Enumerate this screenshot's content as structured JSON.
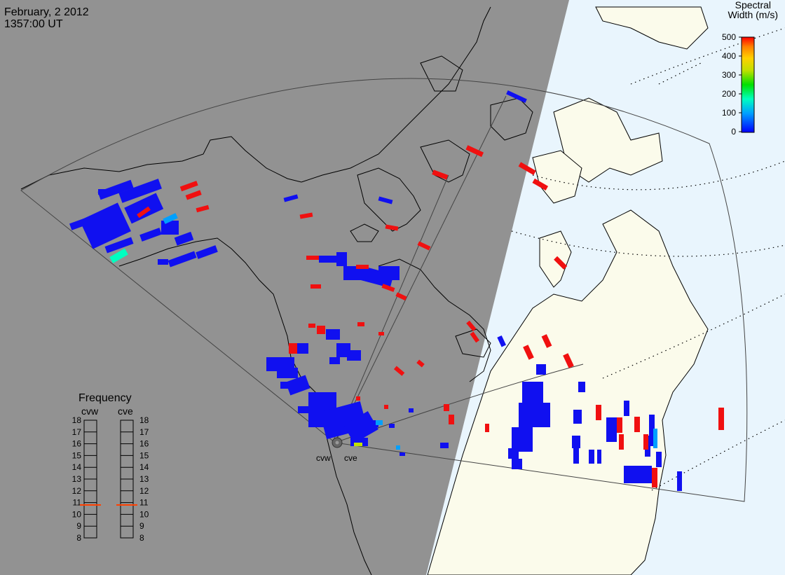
{
  "header": {
    "date": "February, 2 2012",
    "time": "1357:00 UT"
  },
  "colorbar": {
    "title_line1": "Spectral",
    "title_line2": "Width (m/s)",
    "ticks": [
      "500",
      "400",
      "300",
      "200",
      "100",
      "0"
    ],
    "range": [
      0,
      500
    ],
    "colors": [
      "#0000ff",
      "#00a0ff",
      "#00ffc0",
      "#00e000",
      "#c0e000",
      "#ffd000",
      "#ff8000",
      "#ff0000"
    ]
  },
  "frequency_panel": {
    "title": "Frequency",
    "left_radar": "cvw",
    "right_radar": "cve",
    "scale_labels": [
      "18",
      "17",
      "16",
      "15",
      "14",
      "13",
      "12",
      "11",
      "10",
      "9",
      "8"
    ],
    "scale_range_mhz": [
      8,
      18
    ],
    "cvw_frequency_mhz": 10.8,
    "cve_frequency_mhz": 10.8,
    "indicator_color": "#ff4000"
  },
  "radars": [
    {
      "id": "cvw",
      "label": "cvw"
    },
    {
      "id": "cve",
      "label": "cve"
    }
  ],
  "colors": {
    "night": "#929292",
    "day_land": "#fbfbeb",
    "day_ocean": "#e9f5fd",
    "outline": "#000000",
    "scatter_low": "#1010f0",
    "scatter_high": "#f01010"
  }
}
